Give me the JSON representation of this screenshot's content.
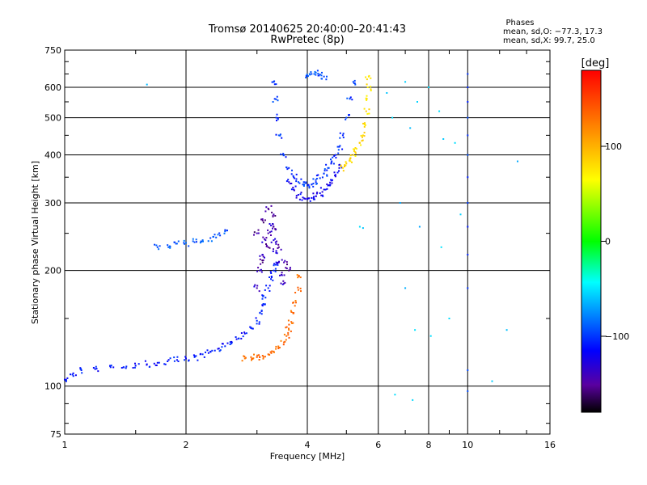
{
  "chart_data": {
    "type": "scatter",
    "title": "Tromsø 20140625 20:40:00–20:41:43",
    "subtitle": "RwPretec (8p)",
    "xlabel": "Frequency [MHz]",
    "ylabel": "Stationary phase Virtual Height [km]",
    "x_scale": "log",
    "y_scale": "log",
    "xlim": [
      1,
      16
    ],
    "ylim": [
      75,
      750
    ],
    "x_ticks": [
      1,
      2,
      4,
      6,
      8,
      10,
      16
    ],
    "x_tick_labels": [
      "1",
      "2",
      "4",
      "6",
      "8",
      "10",
      "16"
    ],
    "y_ticks": [
      75,
      100,
      200,
      300,
      400,
      500,
      600,
      750
    ],
    "y_tick_labels": [
      "75",
      "100",
      "200",
      "300",
      "400",
      "500",
      "600",
      "750"
    ],
    "grid": true,
    "phase_box": {
      "title": "Phases",
      "line_o": "mean, sd,O: −77.3, 17.3",
      "line_x": "mean, sd,X:  99.7, 25.0"
    },
    "colorbar": {
      "label": "[deg]",
      "range": [
        -180,
        180
      ],
      "ticks": [
        100,
        0,
        -100
      ],
      "tick_labels": [
        "100",
        "0",
        "−100"
      ],
      "colormap": "rainbow"
    },
    "traces": [
      {
        "name_hint": "o-F1-low",
        "phase": -110,
        "points": [
          [
            1.0,
            104
          ],
          [
            1.05,
            108
          ],
          [
            1.1,
            110
          ],
          [
            1.2,
            111
          ],
          [
            1.3,
            112
          ],
          [
            1.4,
            112
          ],
          [
            1.5,
            113
          ],
          [
            1.6,
            114
          ],
          [
            1.7,
            115
          ],
          [
            1.8,
            116
          ],
          [
            1.9,
            117
          ],
          [
            2.0,
            118
          ],
          [
            2.1,
            119
          ],
          [
            2.2,
            121
          ],
          [
            2.3,
            123
          ],
          [
            2.4,
            125
          ],
          [
            2.5,
            127
          ],
          [
            2.6,
            130
          ],
          [
            2.7,
            133
          ],
          [
            2.8,
            137
          ],
          [
            2.9,
            142
          ],
          [
            3.0,
            148
          ],
          [
            3.05,
            155
          ],
          [
            3.1,
            162
          ],
          [
            3.15,
            170
          ],
          [
            3.2,
            180
          ],
          [
            3.25,
            190
          ],
          [
            3.3,
            200
          ],
          [
            3.35,
            210
          ]
        ]
      },
      {
        "name_hint": "o-F1-cusp",
        "phase": -135,
        "points": [
          [
            3.0,
            180
          ],
          [
            3.05,
            200
          ],
          [
            3.1,
            220
          ],
          [
            3.15,
            240
          ],
          [
            3.2,
            250
          ],
          [
            3.25,
            262
          ],
          [
            3.3,
            240
          ],
          [
            3.35,
            225
          ],
          [
            3.4,
            210
          ],
          [
            3.45,
            195
          ],
          [
            3.5,
            185
          ]
        ]
      },
      {
        "name_hint": "x-F1",
        "phase": 130,
        "points": [
          [
            2.8,
            118
          ],
          [
            2.9,
            119
          ],
          [
            3.0,
            119
          ],
          [
            3.1,
            120
          ],
          [
            3.2,
            121
          ],
          [
            3.3,
            123
          ],
          [
            3.4,
            126
          ],
          [
            3.5,
            130
          ],
          [
            3.55,
            135
          ],
          [
            3.6,
            140
          ],
          [
            3.65,
            147
          ],
          [
            3.7,
            155
          ],
          [
            3.75,
            165
          ],
          [
            3.8,
            178
          ],
          [
            3.85,
            192
          ]
        ]
      },
      {
        "name_hint": "o-F2",
        "phase": -100,
        "points": [
          [
            3.3,
            620
          ],
          [
            3.32,
            560
          ],
          [
            3.35,
            500
          ],
          [
            3.4,
            450
          ],
          [
            3.5,
            400
          ],
          [
            3.6,
            370
          ],
          [
            3.7,
            350
          ],
          [
            3.8,
            340
          ],
          [
            3.9,
            335
          ],
          [
            4.0,
            333
          ],
          [
            4.1,
            335
          ],
          [
            4.2,
            340
          ],
          [
            4.3,
            348
          ],
          [
            4.4,
            358
          ],
          [
            4.5,
            370
          ],
          [
            4.6,
            385
          ],
          [
            4.7,
            400
          ],
          [
            4.8,
            420
          ],
          [
            4.9,
            450
          ],
          [
            5.0,
            500
          ],
          [
            5.1,
            560
          ],
          [
            5.2,
            620
          ]
        ]
      },
      {
        "name_hint": "o-F2-lower",
        "phase": -120,
        "points": [
          [
            3.6,
            340
          ],
          [
            3.7,
            325
          ],
          [
            3.8,
            315
          ],
          [
            3.9,
            310
          ],
          [
            4.0,
            308
          ],
          [
            4.1,
            309
          ],
          [
            4.2,
            312
          ],
          [
            4.3,
            318
          ],
          [
            4.4,
            325
          ],
          [
            4.5,
            333
          ],
          [
            4.6,
            343
          ],
          [
            4.7,
            355
          ],
          [
            4.8,
            370
          ]
        ]
      },
      {
        "name_hint": "x-F2",
        "phase": 80,
        "points": [
          [
            4.9,
            370
          ],
          [
            5.0,
            380
          ],
          [
            5.1,
            390
          ],
          [
            5.2,
            400
          ],
          [
            5.3,
            415
          ],
          [
            5.4,
            430
          ],
          [
            5.5,
            450
          ],
          [
            5.55,
            480
          ],
          [
            5.6,
            520
          ],
          [
            5.62,
            560
          ],
          [
            5.65,
            600
          ],
          [
            5.68,
            640
          ]
        ]
      },
      {
        "name_hint": "spread-F",
        "phase": -150,
        "points": [
          [
            3.0,
            250
          ],
          [
            3.1,
            270
          ],
          [
            3.2,
            290
          ],
          [
            3.3,
            260
          ],
          [
            3.4,
            230
          ],
          [
            3.5,
            210
          ],
          [
            3.6,
            200
          ],
          [
            3.2,
            230
          ],
          [
            3.1,
            210
          ],
          [
            3.3,
            280
          ]
        ]
      },
      {
        "name_hint": "mid-cluster",
        "phase": -90,
        "points": [
          [
            1.7,
            230
          ],
          [
            1.8,
            233
          ],
          [
            1.9,
            235
          ],
          [
            2.0,
            236
          ],
          [
            2.1,
            237
          ],
          [
            2.2,
            240
          ],
          [
            2.3,
            243
          ],
          [
            2.4,
            248
          ],
          [
            2.5,
            253
          ]
        ]
      },
      {
        "name_hint": "top",
        "phase": -95,
        "points": [
          [
            4.0,
            645
          ],
          [
            4.1,
            650
          ],
          [
            4.2,
            655
          ],
          [
            4.3,
            648
          ],
          [
            4.4,
            640
          ]
        ]
      },
      {
        "name_hint": "isolated-10MHz",
        "phase": -100,
        "points": [
          [
            10.0,
            650
          ],
          [
            10.0,
            600
          ],
          [
            10.0,
            550
          ],
          [
            10.0,
            500
          ],
          [
            10.0,
            450
          ],
          [
            10.0,
            400
          ],
          [
            10.0,
            350
          ],
          [
            10.0,
            300
          ],
          [
            10.0,
            260
          ],
          [
            10.0,
            220
          ],
          [
            10.0,
            180
          ],
          [
            10.0,
            110
          ],
          [
            10.0,
            97
          ]
        ]
      },
      {
        "name_hint": "isolated-scatter",
        "phase": -60,
        "points": [
          [
            6.3,
            580
          ],
          [
            6.5,
            500
          ],
          [
            7.0,
            620
          ],
          [
            7.2,
            470
          ],
          [
            7.5,
            550
          ],
          [
            8.0,
            600
          ],
          [
            8.5,
            520
          ],
          [
            8.7,
            440
          ],
          [
            9.3,
            430
          ],
          [
            6.8,
            300
          ],
          [
            7.6,
            260
          ],
          [
            8.6,
            230
          ],
          [
            9.6,
            280
          ],
          [
            7.0,
            180
          ],
          [
            7.4,
            140
          ],
          [
            8.1,
            135
          ],
          [
            6.6,
            95
          ],
          [
            7.3,
            92
          ],
          [
            13.3,
            385
          ],
          [
            12.5,
            140
          ],
          [
            11.5,
            103
          ],
          [
            9.0,
            150
          ],
          [
            1.6,
            610
          ],
          [
            5.4,
            260
          ],
          [
            5.5,
            258
          ]
        ]
      }
    ]
  }
}
